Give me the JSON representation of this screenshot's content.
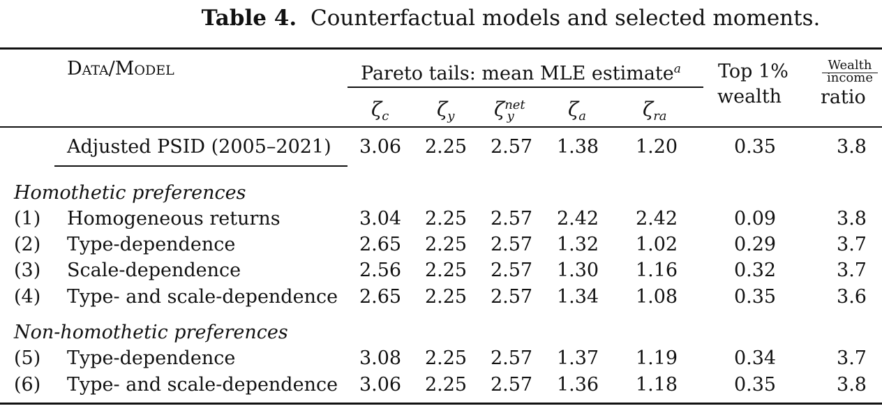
{
  "caption": {
    "label": "Table 4.",
    "text": "Counterfactual models and selected moments."
  },
  "header": {
    "data_model": "Data/Model",
    "pareto_group": "Pareto tails: mean MLE estimate",
    "pareto_footnote": "a",
    "top1_line1": "Top 1%",
    "top1_line2": "wealth",
    "ratio_num": "Wealth",
    "ratio_den": "income",
    "ratio_word": "ratio",
    "zeta": "ζ",
    "sub_c": "c",
    "sub_y": "y",
    "sub_ynet": "y",
    "sup_net": "net",
    "sub_a": "a",
    "sub_ra": "ra"
  },
  "data_row": {
    "label": "Adjusted PSID (2005–2021)",
    "values": [
      "3.06",
      "2.25",
      "2.57",
      "1.38",
      "1.20",
      "0.35",
      "3.8"
    ]
  },
  "sections": [
    {
      "title": "Homothetic preferences",
      "rows": [
        {
          "idx": "(1)",
          "label": "Homogeneous returns",
          "values": [
            "3.04",
            "2.25",
            "2.57",
            "2.42",
            "2.42",
            "0.09",
            "3.8"
          ]
        },
        {
          "idx": "(2)",
          "label": "Type-dependence",
          "values": [
            "2.65",
            "2.25",
            "2.57",
            "1.32",
            "1.02",
            "0.29",
            "3.7"
          ]
        },
        {
          "idx": "(3)",
          "label": "Scale-dependence",
          "values": [
            "2.56",
            "2.25",
            "2.57",
            "1.30",
            "1.16",
            "0.32",
            "3.7"
          ]
        },
        {
          "idx": "(4)",
          "label": "Type- and scale-dependence",
          "values": [
            "2.65",
            "2.25",
            "2.57",
            "1.34",
            "1.08",
            "0.35",
            "3.6"
          ]
        }
      ]
    },
    {
      "title": "Non-homothetic preferences",
      "rows": [
        {
          "idx": "(5)",
          "label": "Type-dependence",
          "values": [
            "3.08",
            "2.25",
            "2.57",
            "1.37",
            "1.19",
            "0.34",
            "3.7"
          ]
        },
        {
          "idx": "(6)",
          "label": "Type- and scale-dependence",
          "values": [
            "3.06",
            "2.25",
            "2.57",
            "1.36",
            "1.18",
            "0.35",
            "3.8"
          ]
        }
      ]
    }
  ]
}
